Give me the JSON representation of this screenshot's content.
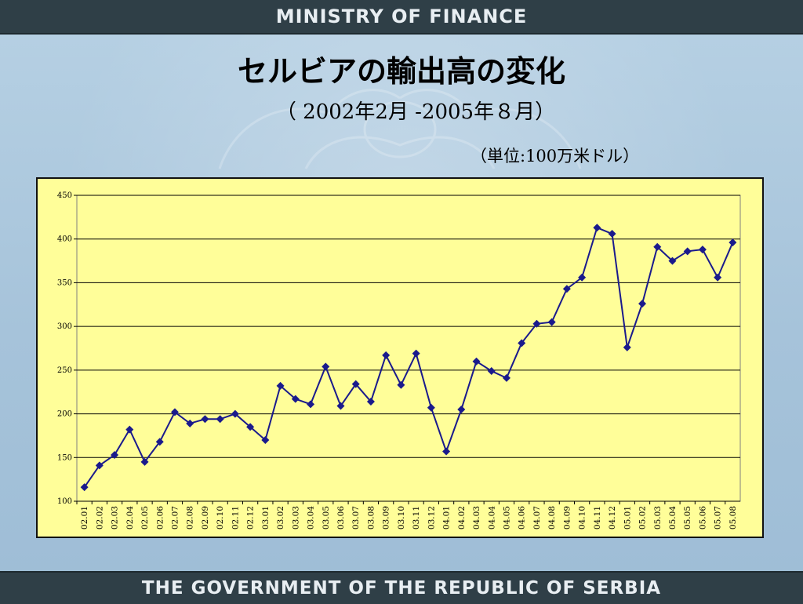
{
  "header": {
    "ministry": "MINISTRY OF FINANCE"
  },
  "footer": {
    "government": "THE GOVERNMENT OF THE REPUBLIC OF SERBIA"
  },
  "slide": {
    "title": "セルビアの輸出高の変化",
    "subtitle": "（ 2002年2月 -2005年８月）",
    "unit": "（単位:100万米ドル）"
  },
  "colors": {
    "series": "#1a1a8c",
    "plot_bg": "#ffff99",
    "bars": "#2f3f47"
  },
  "chart_data": {
    "type": "line",
    "title": "",
    "xlabel": "",
    "ylabel": "",
    "ylim": [
      100,
      450
    ],
    "yticks": [
      100,
      150,
      200,
      250,
      300,
      350,
      400,
      450
    ],
    "grid": true,
    "marker": "diamond",
    "categories": [
      "02.01",
      "02.02",
      "02.03",
      "02.04",
      "02.05",
      "02.06",
      "02.07",
      "02.08",
      "02.09",
      "02.10",
      "02.11",
      "02.12",
      "03.01",
      "03.02",
      "03.03",
      "03.04",
      "03.05",
      "03.06",
      "03.07",
      "03.08",
      "03.09",
      "03.10",
      "03.11",
      "03.12",
      "04.01",
      "04.02",
      "04.03",
      "04.04",
      "04.05",
      "04.06",
      "04.07",
      "04.08",
      "04.09",
      "04.10",
      "04.11",
      "04.12",
      "05.01",
      "05.02",
      "05.03",
      "05.04",
      "05.05",
      "05.06",
      "05.07",
      "05.08"
    ],
    "series": [
      {
        "values": [
          116,
          141,
          153,
          182,
          145,
          168,
          202,
          189,
          194,
          194,
          200,
          185,
          170,
          232,
          217,
          211,
          254,
          209,
          234,
          214,
          267,
          233,
          269,
          207,
          157,
          205,
          260,
          249,
          241,
          281,
          303,
          305,
          343,
          356,
          413,
          406,
          276,
          326,
          391,
          375,
          386,
          388,
          356,
          396
        ]
      }
    ]
  }
}
